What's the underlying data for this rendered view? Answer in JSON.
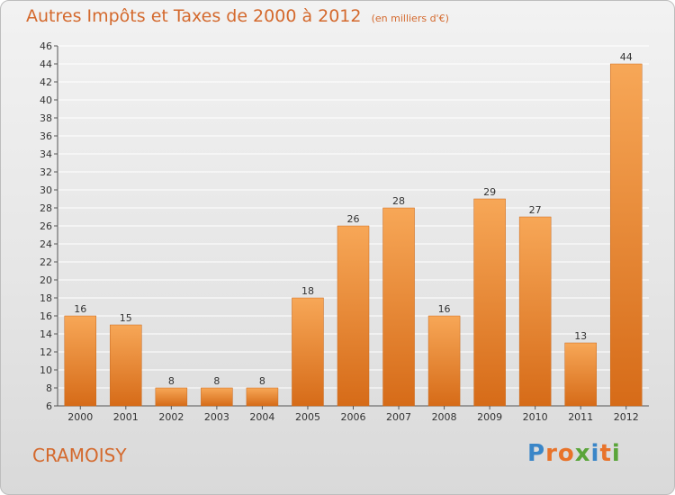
{
  "title": "Autres Impôts et Taxes de 2000 à 2012",
  "subtitle": "(en milliers d'€)",
  "commune": "CRAMOISY",
  "brand": {
    "letters": [
      {
        "ch": "P",
        "color": "#3a86c8"
      },
      {
        "ch": "r",
        "color": "#e8732a"
      },
      {
        "ch": "o",
        "color": "#e8732a"
      },
      {
        "ch": "x",
        "color": "#5aa53a"
      },
      {
        "ch": "i",
        "color": "#3a86c8"
      },
      {
        "ch": "t",
        "color": "#e8732a"
      },
      {
        "ch": "i",
        "color": "#5aa53a"
      }
    ]
  },
  "colors": {
    "bar_top": "#f7a757",
    "bar_bottom": "#d66b18",
    "grid": "#ffffff",
    "title": "#d4692d"
  },
  "chart_data": {
    "type": "bar",
    "categories": [
      "2000",
      "2001",
      "2002",
      "2003",
      "2004",
      "2005",
      "2006",
      "2007",
      "2008",
      "2009",
      "2010",
      "2011",
      "2012"
    ],
    "values": [
      16,
      15,
      8,
      8,
      8,
      18,
      26,
      28,
      16,
      29,
      27,
      13,
      44
    ],
    "title": "Autres Impôts et Taxes de 2000 à 2012",
    "xlabel": "",
    "ylabel": "",
    "ylim": [
      6,
      46
    ],
    "ytick_step": 2,
    "grid": true,
    "data_labels": true
  }
}
